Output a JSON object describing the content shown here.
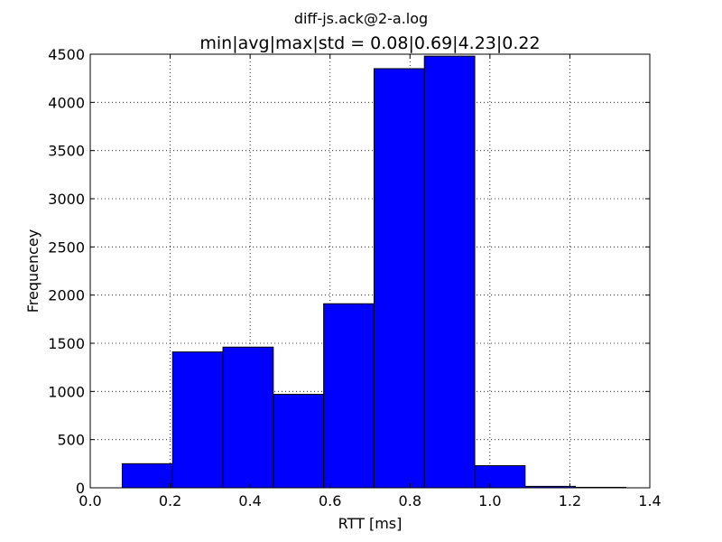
{
  "chart_data": {
    "type": "bar",
    "suptitle": "diff-js.ack@2-a.log",
    "title": "min|avg|max|std = 0.08|0.69|4.23|0.22",
    "xlabel": "RTT [ms]",
    "ylabel": "Frequencey",
    "xlim": [
      0.0,
      1.4
    ],
    "ylim": [
      0,
      4500
    ],
    "xticks": [
      "0.0",
      "0.2",
      "0.4",
      "0.6",
      "0.8",
      "1.0",
      "1.2",
      "1.4"
    ],
    "yticks": [
      "0",
      "500",
      "1000",
      "1500",
      "2000",
      "2500",
      "3000",
      "3500",
      "4000",
      "4500"
    ],
    "grid": true,
    "bar_color": "#0000ff",
    "edge_color": "#000000",
    "bins": [
      {
        "x0": 0.08,
        "x1": 0.206,
        "value": 250
      },
      {
        "x0": 0.206,
        "x1": 0.332,
        "value": 1410
      },
      {
        "x0": 0.332,
        "x1": 0.458,
        "value": 1460
      },
      {
        "x0": 0.458,
        "x1": 0.584,
        "value": 970
      },
      {
        "x0": 0.584,
        "x1": 0.71,
        "value": 1910
      },
      {
        "x0": 0.71,
        "x1": 0.836,
        "value": 4350
      },
      {
        "x0": 0.836,
        "x1": 0.962,
        "value": 4480
      },
      {
        "x0": 0.962,
        "x1": 1.088,
        "value": 230
      },
      {
        "x0": 1.088,
        "x1": 1.214,
        "value": 15
      },
      {
        "x0": 1.214,
        "x1": 1.34,
        "value": 5
      }
    ]
  }
}
